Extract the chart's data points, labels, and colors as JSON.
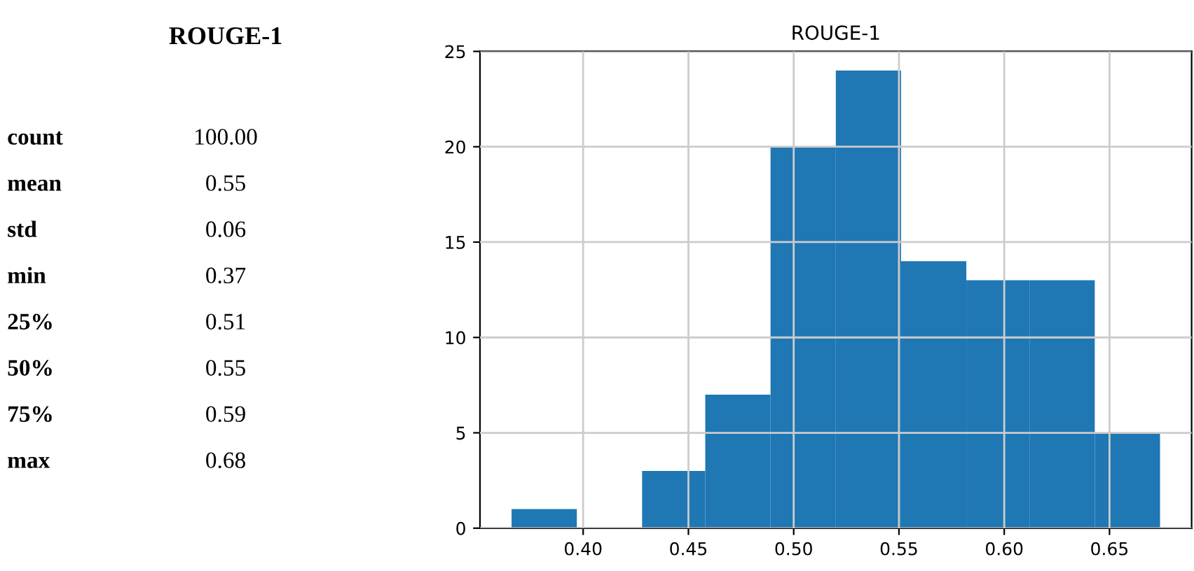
{
  "chart_data": [
    {
      "type": "other",
      "title": "ROUGE-1",
      "annotations": [
        "count",
        "100.00",
        "mean",
        "0.55",
        "std",
        "0.06",
        "min",
        "0.37",
        "25%",
        "0.51",
        "50%",
        "0.55",
        "75%",
        "0.59",
        "max",
        "0.68"
      ]
    },
    {
      "type": "histogram",
      "title": "ROUGE-1",
      "bins": [
        0.366,
        0.397,
        0.428,
        0.458,
        0.489,
        0.52,
        0.551,
        0.582,
        0.612,
        0.643,
        0.674
      ],
      "values": [
        1,
        0,
        3,
        7,
        20,
        24,
        14,
        13,
        13,
        5
      ],
      "color": "#1f77b4",
      "xlim": [
        0.351,
        0.689
      ],
      "xticks": [
        {
          "value": 0.4,
          "label": "0.40"
        },
        {
          "value": 0.45,
          "label": "0.45"
        },
        {
          "value": 0.5,
          "label": "0.50"
        },
        {
          "value": 0.55,
          "label": "0.55"
        },
        {
          "value": 0.6,
          "label": "0.60"
        },
        {
          "value": 0.65,
          "label": "0.65"
        }
      ],
      "ylim": [
        0,
        25
      ],
      "yticks": [
        0,
        5,
        10,
        15,
        20,
        25
      ],
      "grid": true
    }
  ]
}
